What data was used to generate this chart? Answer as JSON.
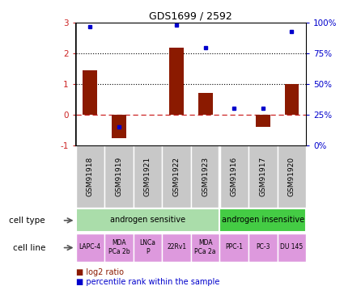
{
  "title": "GDS1699 / 2592",
  "samples": [
    "GSM91918",
    "GSM91919",
    "GSM91921",
    "GSM91922",
    "GSM91923",
    "GSM91916",
    "GSM91917",
    "GSM91920"
  ],
  "log2_ratio": [
    1.45,
    -0.75,
    0.0,
    2.2,
    0.7,
    0.0,
    -0.4,
    1.0
  ],
  "percentile_rank": [
    97,
    15,
    null,
    98,
    80,
    30,
    30,
    93
  ],
  "ylim_left": [
    -1,
    3
  ],
  "ylim_right": [
    0,
    100
  ],
  "yticks_left": [
    -1,
    0,
    1,
    2,
    3
  ],
  "yticks_right": [
    0,
    25,
    50,
    75,
    100
  ],
  "ytick_labels_right": [
    "0%",
    "25%",
    "50%",
    "75%",
    "100%"
  ],
  "dotted_lines": [
    1,
    2
  ],
  "bar_color": "#8B1A00",
  "dot_color": "#0000CC",
  "cell_type_sensitive_color": "#AADDAA",
  "cell_type_insensitive_color": "#44CC44",
  "cell_line_color": "#DD99DD",
  "sample_bg_color": "#C8C8C8",
  "cell_type_groups": [
    {
      "label": "androgen sensitive",
      "start": 0,
      "end": 4
    },
    {
      "label": "androgen insensitive",
      "start": 5,
      "end": 7
    }
  ],
  "cell_lines": [
    {
      "label": "LAPC-4",
      "span": [
        0,
        0
      ]
    },
    {
      "label": "MDA\nPCa 2b",
      "span": [
        1,
        1
      ]
    },
    {
      "label": "LNCa\nP",
      "span": [
        2,
        2
      ]
    },
    {
      "label": "22Rv1",
      "span": [
        3,
        3
      ]
    },
    {
      "label": "MDA\nPCa 2a",
      "span": [
        4,
        4
      ]
    },
    {
      "label": "PPC-1",
      "span": [
        5,
        5
      ]
    },
    {
      "label": "PC-3",
      "span": [
        6,
        6
      ]
    },
    {
      "label": "DU 145",
      "span": [
        7,
        7
      ]
    }
  ],
  "legend_bar_label": "log2 ratio",
  "legend_dot_label": "percentile rank within the sample",
  "cell_type_label": "cell type",
  "cell_line_label": "cell line"
}
